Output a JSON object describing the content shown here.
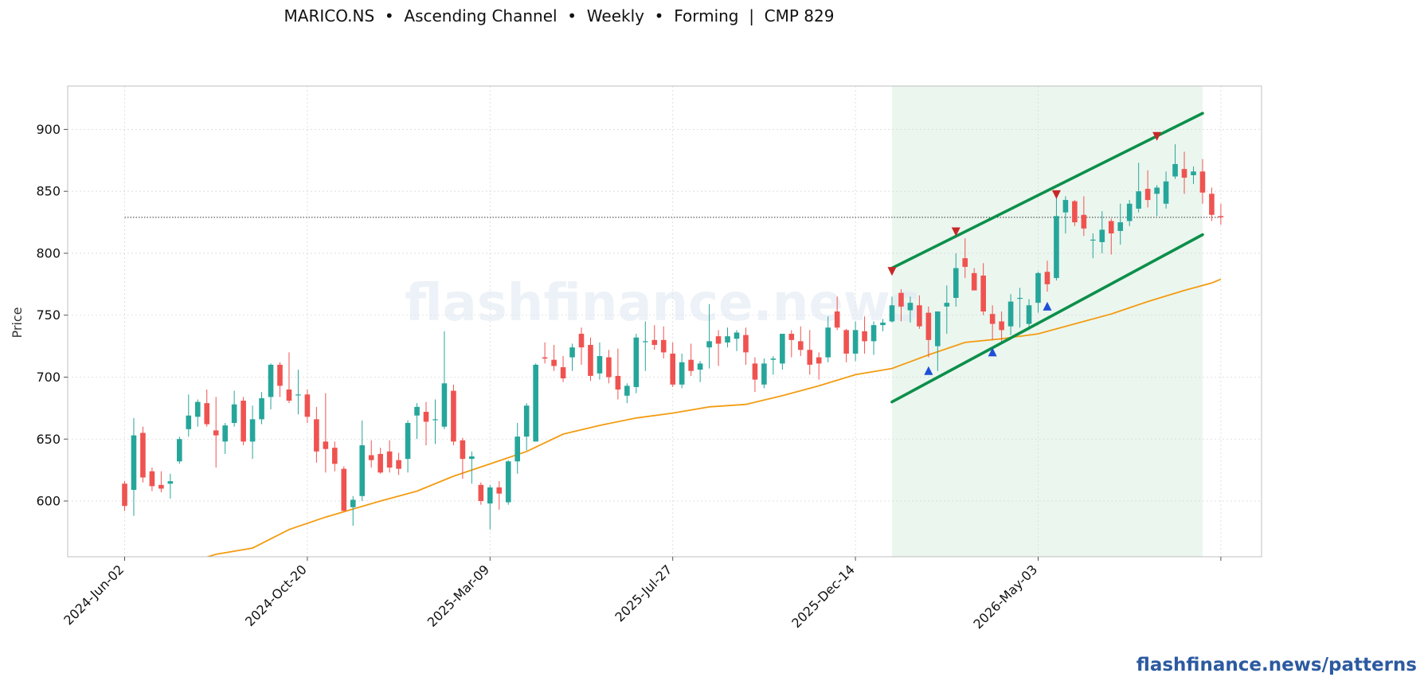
{
  "title": "MARICO.NS  •  Ascending Channel  •  Weekly  •  Forming  |  CMP 829",
  "footer": "flashfinance.news/patterns",
  "watermark": "flashfinance.news",
  "colors": {
    "up": "#26a69a",
    "down": "#ef5350",
    "ma": "#f39c12",
    "channel": "#0c8f4a",
    "highlight": "#e8f5ec",
    "peak_marker": "#c62828",
    "trough_marker": "#1e4fd6",
    "cmp_line": "#333333"
  },
  "chart_data": {
    "type": "candlestick",
    "ylabel": "Price",
    "xlabel": "",
    "ylim": [
      555,
      935
    ],
    "yticks": [
      600,
      650,
      700,
      750,
      800,
      850,
      900
    ],
    "xticks": [
      {
        "label": "2024-Jun-02",
        "index": 0
      },
      {
        "label": "2024-Oct-20",
        "index": 20
      },
      {
        "label": "2025-Mar-09",
        "index": 40
      },
      {
        "label": "2025-Jul-27",
        "index": 60
      },
      {
        "label": "2025-Dec-14",
        "index": 80
      },
      {
        "label": "2026-May-03",
        "index": 100
      },
      {
        "label": "",
        "index": 120
      }
    ],
    "grid": true,
    "cmp": 829,
    "highlight_range": [
      84,
      118
    ],
    "candles": [
      [
        614,
        616,
        592,
        596
      ],
      [
        609,
        667,
        588,
        653
      ],
      [
        655,
        660,
        615,
        619
      ],
      [
        624,
        627,
        608,
        612
      ],
      [
        613,
        624,
        607,
        610
      ],
      [
        614,
        622,
        602,
        616
      ],
      [
        632,
        652,
        630,
        650
      ],
      [
        658,
        686,
        652,
        669
      ],
      [
        668,
        682,
        660,
        680
      ],
      [
        679,
        690,
        660,
        662
      ],
      [
        657,
        684,
        627,
        653
      ],
      [
        648,
        663,
        638,
        661
      ],
      [
        663,
        689,
        660,
        678
      ],
      [
        681,
        684,
        645,
        648
      ],
      [
        648,
        677,
        634,
        666
      ],
      [
        666,
        688,
        662,
        683
      ],
      [
        684,
        711,
        674,
        710
      ],
      [
        710,
        712,
        684,
        693
      ],
      [
        690,
        720,
        679,
        681
      ],
      [
        686,
        706,
        670,
        686
      ],
      [
        686,
        690,
        663,
        668
      ],
      [
        666,
        676,
        631,
        640
      ],
      [
        648,
        687,
        623,
        642
      ],
      [
        643,
        648,
        624,
        630
      ],
      [
        626,
        628,
        592,
        592
      ],
      [
        595,
        604,
        580,
        601
      ],
      [
        604,
        665,
        600,
        645
      ],
      [
        637,
        649,
        627,
        633
      ],
      [
        638,
        643,
        622,
        623
      ],
      [
        640,
        649,
        623,
        627
      ],
      [
        633,
        639,
        621,
        626
      ],
      [
        634,
        665,
        623,
        663
      ],
      [
        669,
        679,
        650,
        676
      ],
      [
        672,
        680,
        645,
        664
      ],
      [
        666,
        682,
        646,
        666
      ],
      [
        660,
        737,
        658,
        695
      ],
      [
        689,
        694,
        645,
        648
      ],
      [
        649,
        651,
        618,
        634
      ],
      [
        634,
        640,
        614,
        636
      ],
      [
        613,
        615,
        597,
        600
      ],
      [
        598,
        613,
        577,
        611
      ],
      [
        611,
        616,
        593,
        606
      ],
      [
        599,
        633,
        597,
        632
      ],
      [
        632,
        663,
        622,
        652
      ],
      [
        652,
        679,
        641,
        677
      ],
      [
        648,
        711,
        648,
        710
      ],
      [
        716,
        728,
        711,
        715
      ],
      [
        714,
        726,
        705,
        709
      ],
      [
        708,
        717,
        696,
        699
      ],
      [
        716,
        727,
        705,
        724
      ],
      [
        735,
        740,
        710,
        724
      ],
      [
        726,
        732,
        697,
        701
      ],
      [
        703,
        728,
        698,
        717
      ],
      [
        716,
        722,
        695,
        700
      ],
      [
        701,
        723,
        682,
        690
      ],
      [
        685,
        695,
        679,
        693
      ],
      [
        692,
        735,
        687,
        732
      ],
      [
        729,
        745,
        705,
        729
      ],
      [
        730,
        742,
        722,
        726
      ],
      [
        730,
        741,
        715,
        720
      ],
      [
        719,
        728,
        692,
        694
      ],
      [
        694,
        719,
        691,
        712
      ],
      [
        714,
        727,
        701,
        705
      ],
      [
        706,
        713,
        696,
        711
      ],
      [
        724,
        759,
        707,
        729
      ],
      [
        733,
        738,
        709,
        727
      ],
      [
        728,
        740,
        724,
        733
      ],
      [
        731,
        738,
        721,
        736
      ],
      [
        734,
        740,
        710,
        720
      ],
      [
        711,
        716,
        688,
        698
      ],
      [
        694,
        715,
        691,
        711
      ],
      [
        714,
        717,
        702,
        715
      ],
      [
        711,
        734,
        706,
        735
      ],
      [
        735,
        738,
        716,
        730
      ],
      [
        729,
        741,
        717,
        722
      ],
      [
        722,
        738,
        702,
        710
      ],
      [
        716,
        720,
        698,
        711
      ],
      [
        716,
        749,
        712,
        740
      ],
      [
        753,
        765,
        738,
        740
      ],
      [
        738,
        739,
        712,
        719
      ],
      [
        719,
        745,
        713,
        738
      ],
      [
        737,
        749,
        719,
        729
      ],
      [
        729,
        745,
        718,
        742
      ],
      [
        742,
        747,
        737,
        744
      ],
      [
        745,
        765,
        744,
        758
      ],
      [
        768,
        771,
        745,
        757
      ],
      [
        754,
        765,
        744,
        760
      ],
      [
        758,
        766,
        739,
        741
      ],
      [
        752,
        757,
        716,
        730
      ],
      [
        725,
        753,
        705,
        753
      ],
      [
        757,
        774,
        735,
        760
      ],
      [
        764,
        800,
        757,
        788
      ],
      [
        796,
        812,
        780,
        789
      ],
      [
        784,
        788,
        771,
        770
      ],
      [
        782,
        792,
        750,
        753
      ],
      [
        751,
        758,
        730,
        743
      ],
      [
        745,
        753,
        728,
        738
      ],
      [
        741,
        767,
        734,
        761
      ],
      [
        764,
        772,
        740,
        764
      ],
      [
        743,
        763,
        738,
        758
      ],
      [
        760,
        785,
        752,
        784
      ],
      [
        785,
        794,
        769,
        775
      ],
      [
        780,
        849,
        778,
        830
      ],
      [
        833,
        846,
        816,
        843
      ],
      [
        842,
        843,
        822,
        825
      ],
      [
        831,
        846,
        814,
        820
      ],
      [
        811,
        816,
        796,
        811
      ],
      [
        809,
        834,
        800,
        819
      ],
      [
        826,
        828,
        799,
        816
      ],
      [
        818,
        840,
        807,
        825
      ],
      [
        826,
        843,
        822,
        840
      ],
      [
        836,
        873,
        833,
        850
      ],
      [
        852,
        867,
        837,
        843
      ],
      [
        848,
        855,
        830,
        853
      ],
      [
        840,
        866,
        836,
        858
      ],
      [
        862,
        888,
        860,
        872
      ],
      [
        868,
        882,
        848,
        861
      ],
      [
        863,
        870,
        856,
        866
      ],
      [
        866,
        876,
        840,
        849
      ],
      [
        848,
        853,
        826,
        831
      ],
      [
        830,
        840,
        823,
        829
      ]
    ],
    "moving_average": [
      [
        0,
        537
      ],
      [
        6,
        548
      ],
      [
        10,
        557
      ],
      [
        14,
        562
      ],
      [
        18,
        577
      ],
      [
        22,
        587
      ],
      [
        28,
        600
      ],
      [
        32,
        608
      ],
      [
        36,
        620
      ],
      [
        40,
        630
      ],
      [
        44,
        640
      ],
      [
        48,
        654
      ],
      [
        52,
        661
      ],
      [
        56,
        667
      ],
      [
        60,
        671
      ],
      [
        64,
        676
      ],
      [
        68,
        678
      ],
      [
        72,
        685
      ],
      [
        76,
        693
      ],
      [
        80,
        702
      ],
      [
        84,
        707
      ],
      [
        88,
        718
      ],
      [
        92,
        728
      ],
      [
        96,
        731
      ],
      [
        100,
        735
      ],
      [
        104,
        743
      ],
      [
        108,
        751
      ],
      [
        112,
        761
      ],
      [
        116,
        770
      ],
      [
        119,
        776
      ],
      [
        120,
        779
      ]
    ],
    "channel_upper": [
      [
        84,
        788
      ],
      [
        118,
        913
      ]
    ],
    "channel_lower": [
      [
        84,
        680
      ],
      [
        118,
        815
      ]
    ],
    "peaks": [
      [
        84,
        785
      ],
      [
        91,
        817
      ],
      [
        102,
        847
      ],
      [
        113,
        894
      ]
    ],
    "troughs": [
      [
        88,
        705
      ],
      [
        95,
        720
      ],
      [
        101,
        757
      ]
    ]
  }
}
